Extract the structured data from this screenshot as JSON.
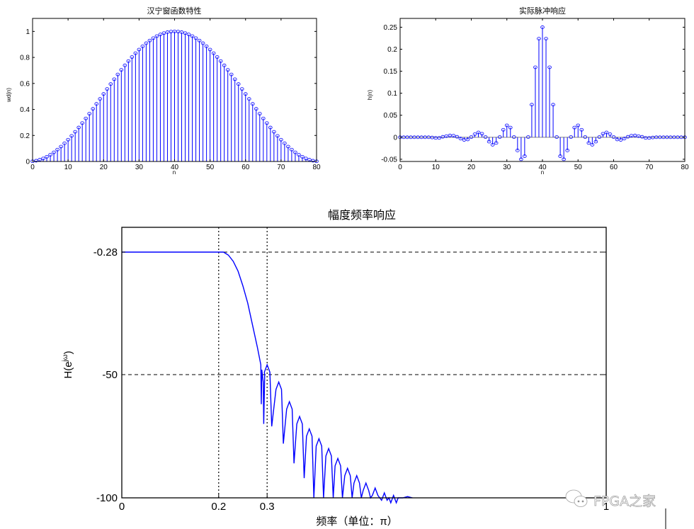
{
  "chart_data": [
    {
      "id": "hanning",
      "type": "stem",
      "title": "汉宁窗函数特性",
      "xlabel": "n",
      "ylabel": "wd(n)",
      "xlim": [
        0,
        80
      ],
      "ylim": [
        0,
        1.1
      ],
      "xticks": [
        0,
        10,
        20,
        30,
        40,
        50,
        60,
        70,
        80
      ],
      "yticks": [
        0,
        0.2,
        0.4,
        0.6,
        0.8,
        1
      ],
      "ytick_labels": [
        "0",
        "0.2",
        "0.4",
        "0.6",
        "0.8",
        "1"
      ],
      "grid": false,
      "formula": "0.5*(1-cos(2*pi*n/81)) for n=0..80 (approx)",
      "n": [
        0,
        80
      ],
      "peak": {
        "n": 40,
        "value": 1.0
      },
      "color": "#0000ff"
    },
    {
      "id": "impulse",
      "type": "stem",
      "title": "实际脉冲响应",
      "xlabel": "n",
      "ylabel": "h(n)",
      "xlim": [
        0,
        80
      ],
      "ylim": [
        -0.055,
        0.27
      ],
      "xticks": [
        0,
        10,
        20,
        30,
        40,
        50,
        60,
        70,
        80
      ],
      "yticks": [
        -0.05,
        0,
        0.05,
        0.1,
        0.15,
        0.2,
        0.25
      ],
      "ytick_labels": [
        "-0.05",
        "0",
        "0.05",
        "0.1",
        "0.15",
        "0.2",
        "0.25"
      ],
      "grid": false,
      "values": [
        0,
        0,
        0,
        0,
        0,
        0,
        0,
        0,
        0,
        -0.0005,
        -0.0015,
        -0.0015,
        0.001,
        0.0025,
        0.004,
        0.0035,
        0.001,
        -0.003,
        -0.006,
        -0.005,
        0.0005,
        0.007,
        0.011,
        0.008,
        0.0005,
        -0.01,
        -0.017,
        -0.013,
        0.0005,
        0.017,
        0.027,
        0.022,
        0.0005,
        -0.03,
        -0.05,
        -0.043,
        0.0005,
        0.074,
        0.159,
        0.224,
        0.25,
        0.224,
        0.159,
        0.074,
        0.0005,
        -0.043,
        -0.05,
        -0.03,
        0.0005,
        0.022,
        0.027,
        0.017,
        0.0005,
        -0.013,
        -0.017,
        -0.01,
        0.0005,
        0.008,
        0.011,
        0.007,
        0.0005,
        -0.005,
        -0.006,
        -0.003,
        0.001,
        0.0035,
        0.004,
        0.0025,
        0.001,
        -0.0015,
        -0.0015,
        -0.0005,
        0,
        0,
        0,
        0,
        0,
        0,
        0,
        0,
        0
      ],
      "color": "#0000ff"
    },
    {
      "id": "magnitude",
      "type": "line",
      "title": "幅度频率响应",
      "xlabel": "频率（单位：π）",
      "ylabel": "H(e^jω)",
      "xlim": [
        0,
        1
      ],
      "ylim": [
        -100,
        10
      ],
      "xticks": [
        0,
        0.2,
        0.3,
        1
      ],
      "xtick_labels": [
        "0",
        "0.2",
        "0.3",
        "1"
      ],
      "yticks": [
        -100,
        -50,
        -0.28
      ],
      "ytick_labels": [
        "-100",
        "-50",
        "-0.28"
      ],
      "grid": "dashed at xticks 0.2, 0.3 and yticks -50, -0.28",
      "passband_edge": 0.2,
      "stopband_edge": 0.3,
      "passband_gain_db": -0.28,
      "first_sidelobe_db": -46,
      "sidelobe_peaks": [
        {
          "x": 0.3,
          "y": -46
        },
        {
          "x": 0.324,
          "y": -53
        },
        {
          "x": 0.346,
          "y": -61
        },
        {
          "x": 0.367,
          "y": -67
        },
        {
          "x": 0.387,
          "y": -72
        },
        {
          "x": 0.407,
          "y": -76
        },
        {
          "x": 0.427,
          "y": -80
        },
        {
          "x": 0.446,
          "y": -84
        },
        {
          "x": 0.466,
          "y": -88
        },
        {
          "x": 0.485,
          "y": -91
        },
        {
          "x": 0.504,
          "y": -94
        },
        {
          "x": 0.523,
          "y": -96
        },
        {
          "x": 0.542,
          "y": -98
        },
        {
          "x": 0.561,
          "y": -99
        }
      ],
      "color": "#0000ff"
    }
  ],
  "watermark": {
    "text": "FPGA之家",
    "icon": "wechat-icon"
  }
}
